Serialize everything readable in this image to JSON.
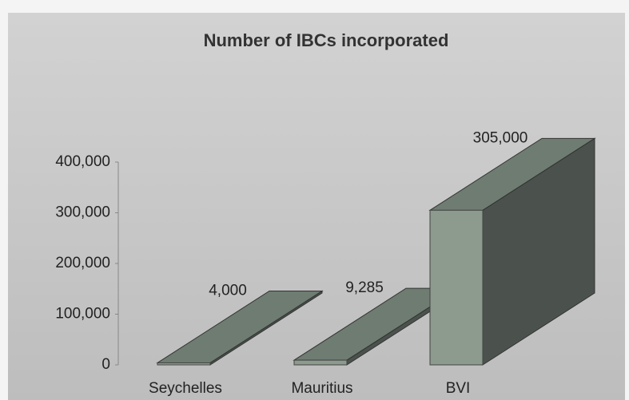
{
  "chart_data": {
    "type": "bar3d",
    "title": "Number of IBCs incorporated",
    "categories": [
      "Seychelles",
      "Mauritius",
      "BVI"
    ],
    "values": [
      4000,
      9285,
      305000
    ],
    "value_labels": [
      "4,000",
      "9,285",
      "305,000"
    ],
    "color": "#8d9a8e",
    "ylim": [
      0,
      400000
    ],
    "yticks": [
      0,
      {
        "value": 100000,
        "label": "100,000"
      },
      {
        "value": 200000,
        "label": "200,000"
      },
      {
        "value": 300000,
        "label": "300,000"
      },
      {
        "value": 400000,
        "label": "400,000"
      }
    ]
  }
}
